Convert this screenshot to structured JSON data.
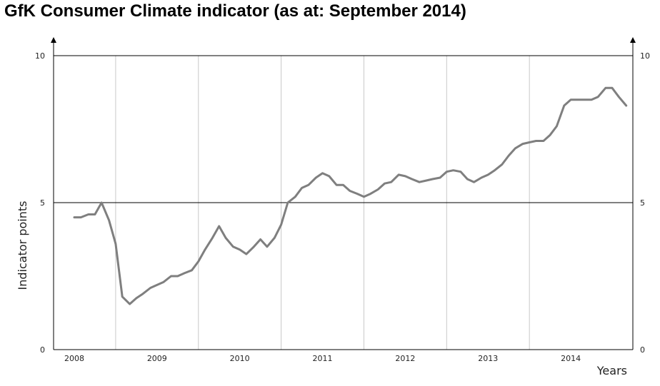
{
  "chart_data": {
    "type": "line",
    "title": "GfK Consumer Climate indicator (as at: September 2014)",
    "ylabel": "Indicator points",
    "xlabel": "Years",
    "ylim": [
      0,
      10
    ],
    "yticks": [
      "0",
      "5",
      "10"
    ],
    "categories": [
      "2008",
      "2009",
      "2010",
      "2011",
      "2012",
      "2013",
      "2014"
    ],
    "grid": true,
    "color": "#7f7f7f",
    "series": [
      {
        "x": [
          2008.0,
          2008.08,
          2008.17,
          2008.25,
          2008.33,
          2008.42,
          2008.5,
          2008.58,
          2008.67,
          2008.75,
          2008.83,
          2008.92,
          2009.0,
          2009.08,
          2009.17,
          2009.25,
          2009.33,
          2009.42,
          2009.5,
          2009.58,
          2009.67,
          2009.75,
          2009.83,
          2009.92,
          2010.0,
          2010.08,
          2010.17,
          2010.25,
          2010.33,
          2010.42,
          2010.5,
          2010.58,
          2010.67,
          2010.75,
          2010.83,
          2010.92,
          2011.0,
          2011.08,
          2011.17,
          2011.25,
          2011.33,
          2011.42,
          2011.5,
          2011.58,
          2011.67,
          2011.75,
          2011.83,
          2011.92,
          2012.0,
          2012.08,
          2012.17,
          2012.25,
          2012.33,
          2012.42,
          2012.5,
          2012.58,
          2012.67,
          2012.75,
          2012.83,
          2012.92,
          2013.0,
          2013.08,
          2013.17,
          2013.25,
          2013.33,
          2013.42,
          2013.5,
          2013.58,
          2013.67,
          2013.75,
          2013.83,
          2013.92,
          2014.0,
          2014.08,
          2014.17,
          2014.25,
          2014.33,
          2014.42,
          2014.5,
          2014.58,
          2014.67
        ],
        "values": [
          4.5,
          4.5,
          4.6,
          4.6,
          5.0,
          4.4,
          3.6,
          1.8,
          1.55,
          1.75,
          1.9,
          2.1,
          2.2,
          2.3,
          2.5,
          2.5,
          2.6,
          2.7,
          3.0,
          3.4,
          3.8,
          4.2,
          3.8,
          3.5,
          3.4,
          3.25,
          3.5,
          3.75,
          3.5,
          3.8,
          4.25,
          5.0,
          5.2,
          5.5,
          5.6,
          5.85,
          6.0,
          5.9,
          5.6,
          5.6,
          5.4,
          5.3,
          5.2,
          5.3,
          5.45,
          5.65,
          5.7,
          5.95,
          5.9,
          5.8,
          5.7,
          5.75,
          5.8,
          5.85,
          6.05,
          6.1,
          6.05,
          5.8,
          5.7,
          5.85,
          5.95,
          6.1,
          6.3,
          6.6,
          6.85,
          7.0,
          7.05,
          7.1,
          7.1,
          7.3,
          7.6,
          8.3,
          8.5,
          8.5,
          8.5,
          8.5,
          8.6,
          8.9,
          8.9,
          8.6,
          8.3
        ]
      }
    ]
  }
}
